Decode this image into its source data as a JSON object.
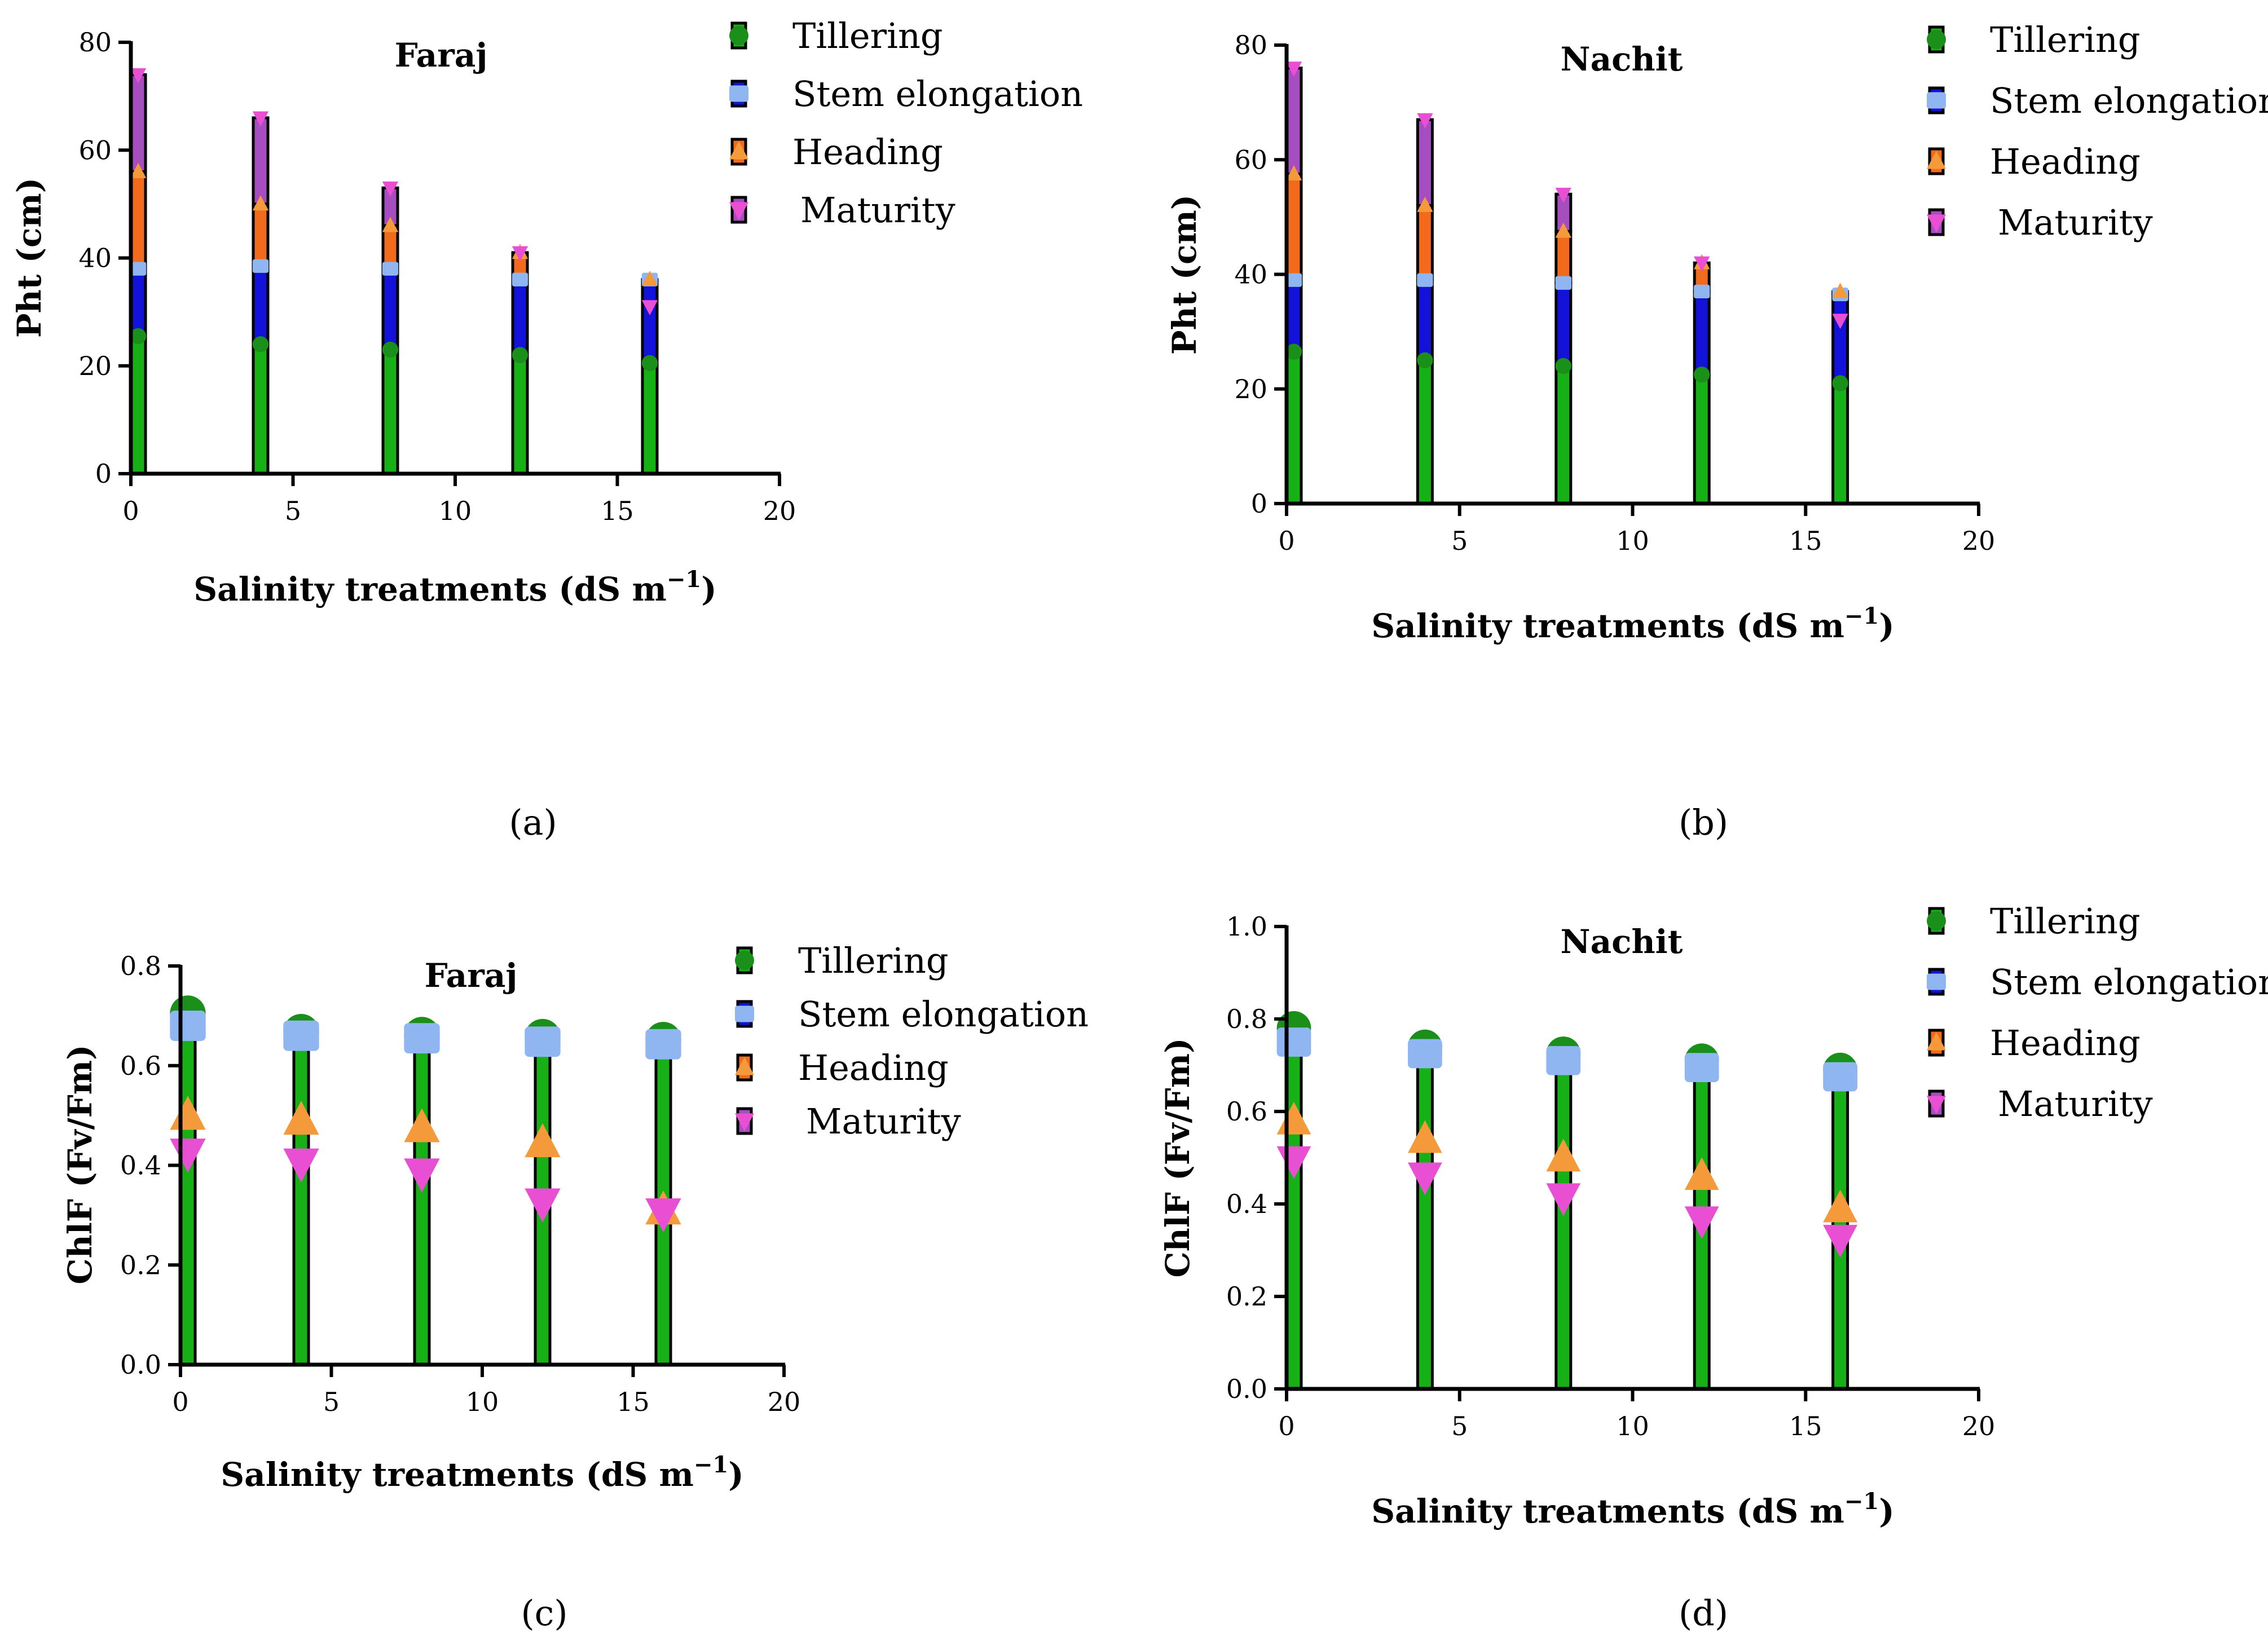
{
  "colors": {
    "tillering": "#1a8f1a",
    "stem_elongation": "#8fb6f0",
    "heading": "#f59a3a",
    "maturity": "#e84fd2",
    "bar_green": "#17b117",
    "bar_blue": "#1212d8",
    "bar_orange": "#f26a1b",
    "bar_purple": "#a64ec0",
    "axis": "#000000"
  },
  "chart_data": [
    {
      "type": "bar",
      "title": "Faraj",
      "caption": "(a)",
      "xlabel": "Salinity treatments (dS m",
      "xlabel_sup": "−1",
      "xlabel_close": ")",
      "ylabel": "Pht (cm)",
      "xlim": [
        0,
        20
      ],
      "ylim": [
        0,
        80
      ],
      "x_ticks": [
        "0",
        "5",
        "10",
        "15",
        "20"
      ],
      "y_ticks": [
        "0",
        "20",
        "40",
        "60",
        "80"
      ],
      "x": [
        0,
        4,
        8,
        12,
        16
      ],
      "legend": [
        "Tillering",
        "Stem elongation",
        "Heading",
        "Maturity"
      ],
      "series": [
        {
          "name": "Tillering",
          "values": [
            25.5,
            24,
            23,
            22,
            20.5
          ]
        },
        {
          "name": "Stem elongation",
          "values": [
            38,
            38.5,
            38,
            36,
            36
          ]
        },
        {
          "name": "Heading",
          "values": [
            56,
            50,
            46,
            41,
            36
          ]
        },
        {
          "name": "Maturity",
          "values": [
            74,
            66,
            53,
            41,
            31
          ]
        }
      ]
    },
    {
      "type": "bar",
      "title": "Nachit",
      "caption": "(b)",
      "xlabel": "Salinity treatments (dS m",
      "xlabel_sup": "−1",
      "xlabel_close": ")",
      "ylabel": "Pht (cm)",
      "xlim": [
        0,
        20
      ],
      "ylim": [
        0,
        80
      ],
      "x_ticks": [
        "0",
        "5",
        "10",
        "15",
        "20"
      ],
      "y_ticks": [
        "0",
        "20",
        "40",
        "60",
        "80"
      ],
      "x": [
        0,
        4,
        8,
        12,
        16
      ],
      "legend": [
        "Tillering",
        "Stem elongation",
        "Heading",
        "Maturity"
      ],
      "series": [
        {
          "name": "Tillering",
          "values": [
            26.5,
            25,
            24,
            22.5,
            21
          ]
        },
        {
          "name": "Stem elongation",
          "values": [
            39,
            39,
            38.5,
            37,
            36.5
          ]
        },
        {
          "name": "Heading",
          "values": [
            57.5,
            52,
            47.5,
            42,
            37
          ]
        },
        {
          "name": "Maturity",
          "values": [
            76,
            67,
            54,
            42,
            32
          ]
        }
      ]
    },
    {
      "type": "bar",
      "title": "Faraj",
      "caption": "(c)",
      "xlabel": "Salinity treatments (dS m",
      "xlabel_sup": "−1",
      "xlabel_close": ")",
      "ylabel": "ChlF (Fv/Fm)",
      "xlim": [
        0,
        20
      ],
      "ylim": [
        0,
        0.8
      ],
      "x_ticks": [
        "0",
        "5",
        "10",
        "15",
        "20"
      ],
      "y_ticks": [
        "0.0",
        "0.2",
        "0.4",
        "0.6",
        "0.8"
      ],
      "x": [
        0,
        4,
        8,
        12,
        16
      ],
      "legend": [
        "Tillering",
        "Stem elongation",
        "Heading",
        "Maturity"
      ],
      "series": [
        {
          "name": "Tillering",
          "values": [
            0.705,
            0.668,
            0.662,
            0.658,
            0.652
          ]
        },
        {
          "name": "Stem elongation",
          "values": [
            0.68,
            0.66,
            0.655,
            0.648,
            0.643
          ]
        },
        {
          "name": "Heading",
          "values": [
            0.5,
            0.49,
            0.475,
            0.445,
            0.31
          ]
        },
        {
          "name": "Maturity",
          "values": [
            0.425,
            0.405,
            0.385,
            0.325,
            0.305
          ]
        }
      ]
    },
    {
      "type": "bar",
      "title": "Nachit",
      "caption": "(d)",
      "xlabel": "Salinity treatments (dS m",
      "xlabel_sup": "−1",
      "xlabel_close": ")",
      "ylabel": "ChlF (Fv/Fm)",
      "xlim": [
        0,
        20
      ],
      "ylim": [
        0,
        1.0
      ],
      "x_ticks": [
        "0",
        "5",
        "10",
        "15",
        "20"
      ],
      "y_ticks": [
        "0.0",
        "0.2",
        "0.4",
        "0.6",
        "0.8",
        "1.0"
      ],
      "x": [
        0,
        4,
        8,
        12,
        16
      ],
      "legend": [
        "Tillering",
        "Stem elongation",
        "Heading",
        "Maturity"
      ],
      "series": [
        {
          "name": "Tillering",
          "values": [
            0.78,
            0.74,
            0.725,
            0.71,
            0.69
          ]
        },
        {
          "name": "Stem elongation",
          "values": [
            0.75,
            0.725,
            0.71,
            0.695,
            0.675
          ]
        },
        {
          "name": "Heading",
          "values": [
            0.58,
            0.54,
            0.5,
            0.46,
            0.39
          ]
        },
        {
          "name": "Maturity",
          "values": [
            0.495,
            0.46,
            0.415,
            0.365,
            0.325
          ]
        }
      ]
    }
  ]
}
